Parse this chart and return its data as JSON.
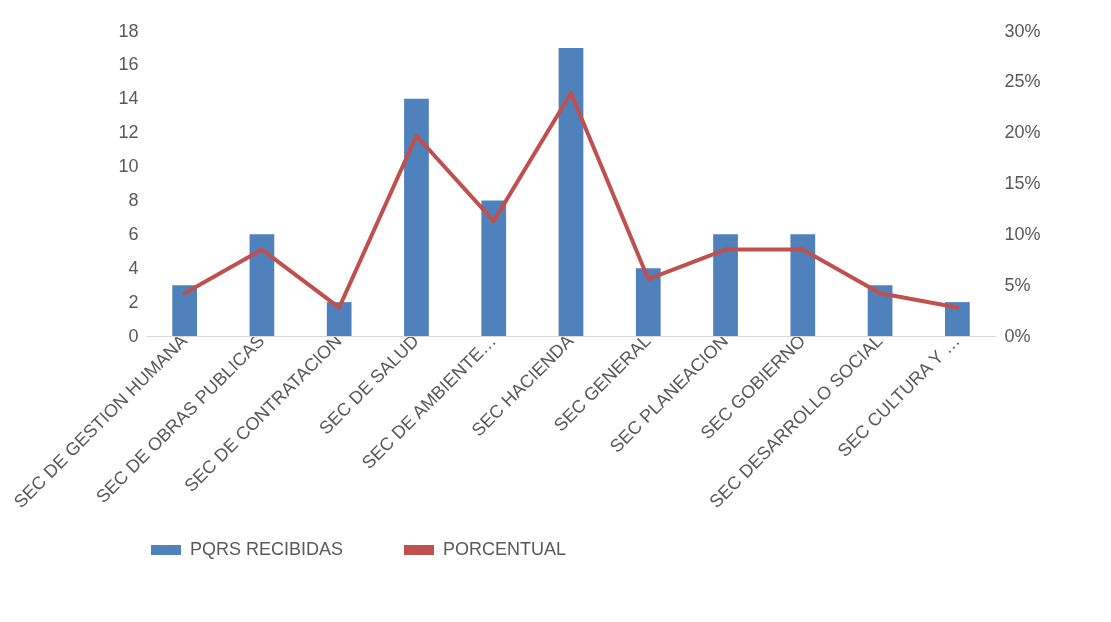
{
  "chart_data": {
    "type": "bar",
    "categories": [
      "SEC DE GESTION HUMANA",
      "SEC DE OBRAS PUBLICAS",
      "SEC DE CONTRATACION",
      "SEC DE SALUD",
      "SEC DE AMBIENTE…",
      "SEC HACIENDA",
      "SEC GENERAL",
      "SEC PLANEACION",
      "SEC GOBIERNO",
      "SEC DESARROLLO SOCIAL",
      "SEC CULTURA Y …"
    ],
    "series": [
      {
        "name": "PQRS RECIBIDAS",
        "color": "#4f81bd",
        "values": [
          3,
          6,
          2,
          14,
          8,
          17,
          4,
          6,
          6,
          3,
          2
        ]
      },
      {
        "name": "PORCENTUAL",
        "type": "line",
        "axis": "y2",
        "color": "#c0504d",
        "values": [
          4.2,
          8.5,
          2.8,
          19.7,
          11.3,
          23.9,
          5.6,
          8.5,
          8.5,
          4.2,
          2.8
        ]
      }
    ],
    "ylim": [
      0,
      18
    ],
    "yticks": [
      0,
      2,
      4,
      6,
      8,
      10,
      12,
      14,
      16,
      18
    ],
    "y2lim": [
      0,
      30
    ],
    "y2ticks": [
      {
        "value": 0,
        "label": "0%"
      },
      {
        "value": 5,
        "label": "5%"
      },
      {
        "value": 10,
        "label": "10%"
      },
      {
        "value": 15,
        "label": "15%"
      },
      {
        "value": 20,
        "label": "20%"
      },
      {
        "value": 25,
        "label": "25%"
      },
      {
        "value": 30,
        "label": "30%"
      }
    ],
    "legend": "bottom"
  }
}
